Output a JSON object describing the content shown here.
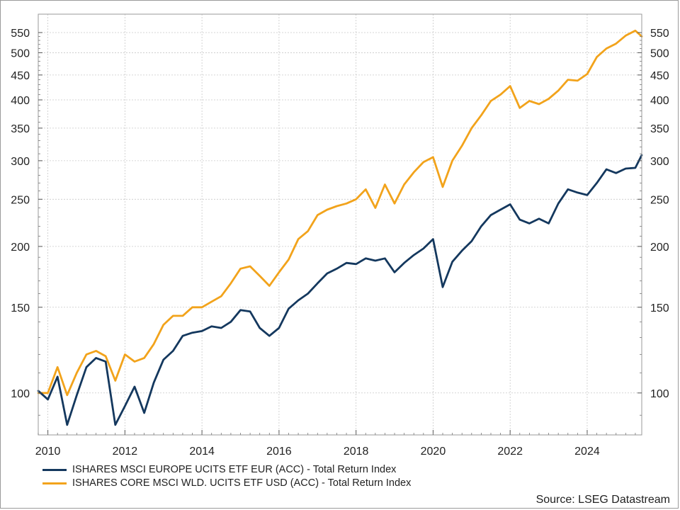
{
  "chart_data": {
    "type": "line",
    "title": "",
    "xlabel": "",
    "ylabel": "",
    "y_scale": "log",
    "ylim": [
      82,
      600
    ],
    "xlim": [
      "2009-10",
      "2025-06"
    ],
    "yticks": [
      100,
      150,
      200,
      250,
      300,
      350,
      400,
      450,
      500,
      550
    ],
    "xticks": [
      "2010",
      "2012",
      "2014",
      "2016",
      "2018",
      "2020",
      "2022",
      "2024"
    ],
    "grid": true,
    "dual_y_axis": true,
    "legend_position": "bottom-left",
    "x": [
      "2009-10",
      "2010-01",
      "2010-04",
      "2010-07",
      "2010-10",
      "2011-01",
      "2011-04",
      "2011-07",
      "2011-10",
      "2012-01",
      "2012-04",
      "2012-07",
      "2012-10",
      "2013-01",
      "2013-04",
      "2013-07",
      "2013-10",
      "2014-01",
      "2014-04",
      "2014-07",
      "2014-10",
      "2015-01",
      "2015-04",
      "2015-07",
      "2015-10",
      "2016-01",
      "2016-04",
      "2016-07",
      "2016-10",
      "2017-01",
      "2017-04",
      "2017-07",
      "2017-10",
      "2018-01",
      "2018-04",
      "2018-07",
      "2018-10",
      "2019-01",
      "2019-04",
      "2019-07",
      "2019-10",
      "2020-01",
      "2020-04",
      "2020-07",
      "2020-10",
      "2021-01",
      "2021-04",
      "2021-07",
      "2021-10",
      "2022-01",
      "2022-04",
      "2022-07",
      "2022-10",
      "2023-01",
      "2023-04",
      "2023-07",
      "2023-10",
      "2024-01",
      "2024-04",
      "2024-07",
      "2024-10",
      "2025-01",
      "2025-04",
      "2025-06"
    ],
    "series": [
      {
        "name": "ISHARES MSCI EUROPE UCITS ETF EUR (ACC) - Total Return Index",
        "color": "#14385e",
        "values": [
          101,
          97,
          108,
          86,
          99,
          113,
          118,
          116,
          86,
          94,
          103,
          91,
          105,
          117,
          122,
          131,
          133,
          134,
          137,
          136,
          140,
          148,
          147,
          136,
          131,
          136,
          149,
          155,
          160,
          168,
          176,
          180,
          185,
          184,
          189,
          187,
          189,
          177,
          185,
          192,
          198,
          207,
          165,
          186,
          196,
          205,
          220,
          232,
          238,
          244,
          227,
          223,
          228,
          223,
          245,
          262,
          258,
          255,
          270,
          288,
          283,
          289,
          290,
          308
        ]
      },
      {
        "name": "ISHARES CORE MSCI WLD. UCITS ETF USD (ACC)",
        "name_suffix": " - Total Return Index",
        "color": "#f2a31b",
        "values": [
          100,
          100,
          113,
          99,
          110,
          120,
          122,
          119,
          106,
          120,
          116,
          118,
          126,
          138,
          144,
          144,
          150,
          150,
          154,
          158,
          168,
          180,
          182,
          174,
          166,
          177,
          188,
          207,
          215,
          232,
          238,
          242,
          245,
          250,
          262,
          240,
          268,
          245,
          268,
          284,
          298,
          305,
          265,
          300,
          322,
          350,
          372,
          398,
          410,
          427,
          385,
          398,
          392,
          402,
          418,
          440,
          438,
          452,
          490,
          510,
          522,
          542,
          555,
          540
        ]
      }
    ]
  },
  "source_text": "Source: LSEG Datastream"
}
